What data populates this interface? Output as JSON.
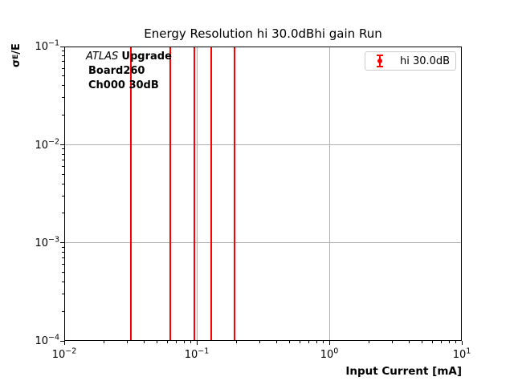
{
  "chart_data": {
    "type": "scatter",
    "style": "errorbar",
    "title": "Energy Resolution hi 30.0dBhi gain Run",
    "xlabel": "Input Current [mA]",
    "ylabel": "σE/E",
    "ylabel_parts": {
      "base": "σ",
      "subscript": "E",
      "suffix": "/E"
    },
    "xscale": "log",
    "yscale": "log",
    "xlim": [
      0.01,
      10
    ],
    "ylim": [
      0.0001,
      0.1
    ],
    "grid": true,
    "x_tick_exponents": [
      -2,
      -1,
      0,
      1
    ],
    "y_tick_exponents": [
      -1,
      -2,
      -3,
      -4
    ],
    "colors": {
      "grid": "#b0b0b0",
      "axis": "#000000",
      "series": "#ff0000"
    },
    "series": [
      {
        "name": "hi 30.0dB",
        "color": "#ff0000",
        "x": [
          0.032,
          0.063,
          0.096,
          0.128,
          0.192
        ],
        "error_bars": "vertical red error bars clipped to full visible y range 1e-4 to 1e-1"
      }
    ],
    "legend": {
      "label": "hi 30.0dB",
      "position": "upper right"
    },
    "annotations": [
      {
        "text_italic": "ATLAS",
        "text_bold": "Upgrade"
      },
      {
        "text_bold": "Board260"
      },
      {
        "text_bold": "Ch000 30dB"
      }
    ]
  }
}
